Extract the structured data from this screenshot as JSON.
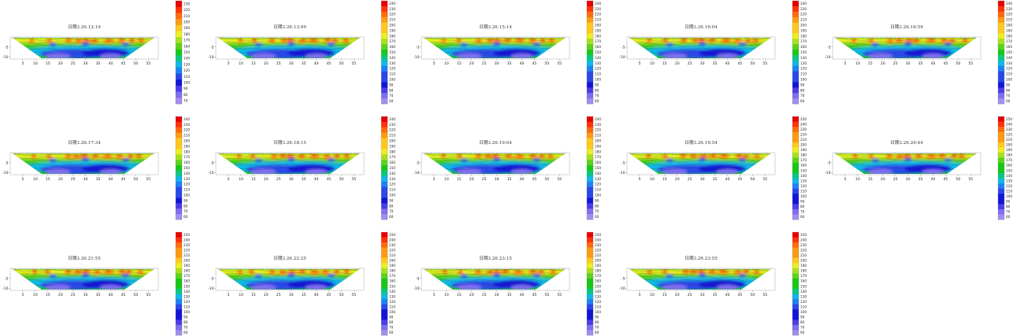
{
  "chart_data": {
    "type": "heatmap",
    "subtype": "2D resistivity inversion contour sections (inverted trapezoid)",
    "x_ticks": [
      5,
      10,
      15,
      20,
      25,
      30,
      35,
      40,
      45,
      50,
      55
    ],
    "y_ticks": [
      -5,
      -10
    ],
    "xlim": [
      0,
      59
    ],
    "ylim": [
      -11,
      0
    ],
    "colormap": [
      "#a58cf0",
      "#7f6ff0",
      "#4a3ee8",
      "#1414d8",
      "#2a48e8",
      "#1e82f4",
      "#10b8e6",
      "#08c882",
      "#18c818",
      "#5cd21a",
      "#a8e01e",
      "#eeee22",
      "#ffc81c",
      "#ff9a12",
      "#ff6a0c",
      "#ff320a",
      "#e80000"
    ],
    "panels": [
      {
        "title": "日期3.26.12:19",
        "colorbar": [
          230,
          220,
          210,
          200,
          190,
          180,
          170,
          160,
          150,
          140,
          130,
          120,
          110,
          100,
          90,
          80,
          70
        ]
      },
      {
        "title": "日期3.26.13:49",
        "colorbar": [
          240,
          230,
          220,
          210,
          200,
          190,
          180,
          170,
          160,
          150,
          140,
          130,
          120,
          110,
          100,
          90,
          80,
          70,
          60
        ]
      },
      {
        "title": "日期3.26.15:14",
        "colorbar": [
          240,
          230,
          220,
          210,
          200,
          190,
          180,
          170,
          160,
          150,
          140,
          130,
          120,
          110,
          100,
          90,
          80,
          70,
          60
        ]
      },
      {
        "title": "日期3.26.16:04",
        "colorbar": [
          240,
          230,
          220,
          210,
          200,
          190,
          180,
          170,
          160,
          150,
          140,
          130,
          120,
          110,
          100,
          90,
          80,
          70,
          60
        ]
      },
      {
        "title": "日期3.26.16:59",
        "colorbar": [
          240,
          230,
          220,
          210,
          200,
          190,
          180,
          170,
          160,
          150,
          140,
          130,
          120,
          110,
          100,
          90,
          80,
          70,
          60
        ]
      },
      {
        "title": "日期3.26.17:34",
        "colorbar": [
          240,
          230,
          220,
          210,
          200,
          190,
          180,
          170,
          160,
          150,
          140,
          130,
          120,
          110,
          100,
          90,
          80,
          70,
          60
        ]
      },
      {
        "title": "日期3.26.18:15",
        "colorbar": [
          240,
          230,
          220,
          210,
          200,
          190,
          180,
          170,
          160,
          150,
          140,
          130,
          120,
          110,
          100,
          90,
          80,
          70,
          60
        ]
      },
      {
        "title": "日期3.26.19:04",
        "colorbar": [
          240,
          230,
          220,
          210,
          200,
          190,
          180,
          170,
          160,
          150,
          140,
          130,
          120,
          110,
          100,
          90,
          80,
          70,
          60
        ]
      },
      {
        "title": "日期3.26.19:54",
        "colorbar": [
          250,
          240,
          230,
          220,
          210,
          200,
          190,
          180,
          170,
          160,
          150,
          140,
          130,
          120,
          110,
          100,
          90,
          80,
          70,
          60
        ]
      },
      {
        "title": "日期3.26.20:44",
        "colorbar": [
          250,
          240,
          230,
          220,
          210,
          200,
          190,
          180,
          170,
          160,
          150,
          140,
          130,
          120,
          110,
          100,
          90,
          80,
          70,
          60
        ]
      },
      {
        "title": "日期3.26.21:55",
        "colorbar": [
          250,
          240,
          230,
          220,
          210,
          200,
          190,
          180,
          170,
          160,
          150,
          140,
          130,
          120,
          110,
          100,
          90,
          80,
          70,
          60
        ]
      },
      {
        "title": "日期3.26.22:25",
        "colorbar": [
          250,
          240,
          230,
          220,
          210,
          200,
          190,
          180,
          170,
          160,
          150,
          140,
          130,
          120,
          110,
          100,
          90,
          80,
          70,
          60
        ]
      },
      {
        "title": "日期3.26.23:15",
        "colorbar": [
          250,
          240,
          230,
          220,
          210,
          200,
          190,
          180,
          170,
          160,
          150,
          140,
          130,
          120,
          110,
          100,
          90,
          80,
          70,
          60
        ]
      },
      {
        "title": "日期3.26.23:55",
        "colorbar": [
          250,
          240,
          230,
          220,
          210,
          200,
          190,
          180,
          170,
          160,
          150,
          140,
          130,
          120,
          110,
          100,
          90,
          80,
          70,
          60
        ]
      }
    ]
  }
}
